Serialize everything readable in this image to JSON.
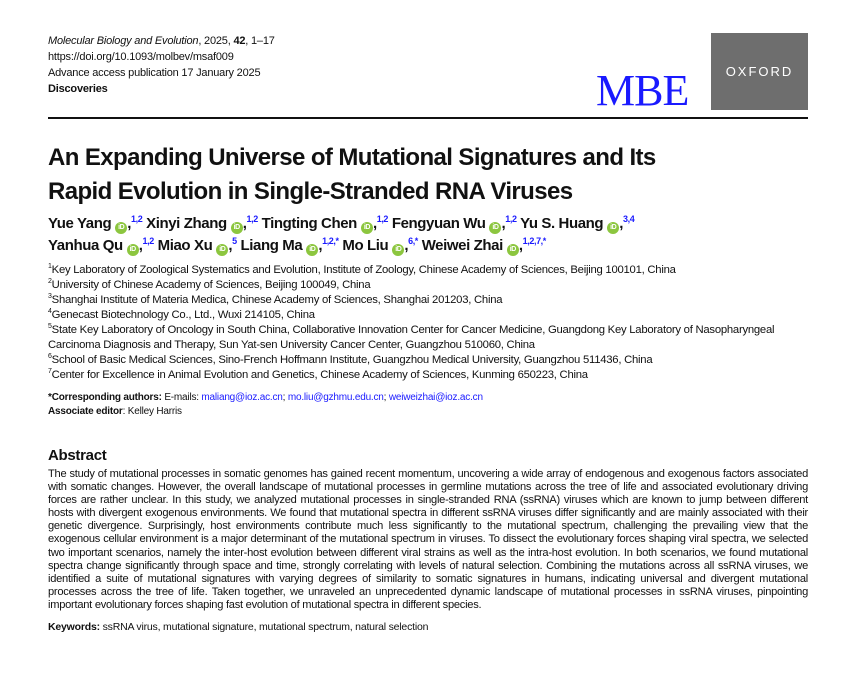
{
  "header": {
    "journal": "Molecular Biology and Evolution",
    "year_prefix": ", 2025, ",
    "volume": "42",
    "pages": ", 1–17",
    "doi": "https://doi.org/10.1093/molbev/msaf009",
    "advance": "Advance access publication 17 January 2025",
    "section": "Discoveries",
    "logo_mbe": "MBE",
    "logo_oxford": "OXFORD"
  },
  "title_lines": [
    "An Expanding Universe of Mutational Signatures and Its",
    "Rapid Evolution in Single-Stranded RNA Viruses"
  ],
  "authors": [
    [
      {
        "name": "Yue Yang",
        "sup": "1,2"
      },
      {
        "name": "Xinyi Zhang",
        "sup": "1,2"
      },
      {
        "name": "Tingting Chen",
        "sup": "1,2"
      },
      {
        "name": "Fengyuan Wu",
        "sup": "1,2"
      },
      {
        "name": "Yu S. Huang",
        "sup": "3,4"
      }
    ],
    [
      {
        "name": "Yanhua Qu",
        "sup": "1,2"
      },
      {
        "name": "Miao Xu",
        "sup": "5"
      },
      {
        "name": "Liang Ma",
        "sup": "1,2,*"
      },
      {
        "name": "Mo Liu",
        "sup": "6,*"
      },
      {
        "name": "Weiwei Zhai",
        "sup": "1,2,7,*"
      }
    ]
  ],
  "affiliations": [
    {
      "n": "1",
      "text": "Key Laboratory of Zoological Systematics and Evolution, Institute of Zoology, Chinese Academy of Sciences, Beijing 100101, China"
    },
    {
      "n": "2",
      "text": "University of Chinese Academy of Sciences, Beijing 100049, China"
    },
    {
      "n": "3",
      "text": "Shanghai Institute of Materia Medica, Chinese Academy of Sciences, Shanghai 201203, China"
    },
    {
      "n": "4",
      "text": "Genecast Biotechnology Co., Ltd., Wuxi 214105, China"
    },
    {
      "n": "5",
      "text": "State Key Laboratory of Oncology in South China, Collaborative Innovation Center for Cancer Medicine, Guangdong Key Laboratory of Nasopharyngeal Carcinoma Diagnosis and Therapy, Sun Yat-sen University Cancer Center, Guangzhou 510060, China"
    },
    {
      "n": "6",
      "text": "School of Basic Medical Sciences, Sino-French Hoffmann Institute, Guangzhou Medical University, Guangzhou 511436, China"
    },
    {
      "n": "7",
      "text": "Center for Excellence in Animal Evolution and Genetics, Chinese Academy of Sciences, Kunming 650223, China"
    }
  ],
  "corresponding": {
    "label": "*Corresponding authors:",
    "emails_label": " E-mails: ",
    "emails": [
      "maliang@ioz.ac.cn",
      "mo.liu@gzhmu.edu.cn",
      "weiweizhai@ioz.ac.cn"
    ]
  },
  "editor": {
    "label": "Associate editor",
    "name": ": Kelley Harris"
  },
  "abstract": {
    "heading": "Abstract",
    "text": "The study of mutational processes in somatic genomes has gained recent momentum, uncovering a wide array of endogenous and exogenous factors associated with somatic changes. However, the overall landscape of mutational processes in germline mutations across the tree of life and associated evolutionary driving forces are rather unclear. In this study, we analyzed mutational processes in single-stranded RNA (ssRNA) viruses which are known to jump between different hosts with divergent exogenous environments. We found that mutational spectra in different ssRNA viruses differ significantly and are mainly associated with their genetic divergence. Surprisingly, host environments contribute much less significantly to the mutational spectrum, challenging the prevailing view that the exogenous cellular environment is a major determinant of the mutational spectrum in viruses. To dissect the evolutionary forces shaping viral spectra, we selected two important scenarios, namely the inter-host evolution between different viral strains as well as the intra-host evolution. In both scenarios, we found mutational spectra change significantly through space and time, strongly correlating with levels of natural selection. Combining the mutations across all ssRNA viruses, we identified a suite of mutational signatures with varying degrees of similarity to somatic signatures in humans, indicating universal and divergent mutational processes across the tree of life. Taken together, we unraveled an unprecedented dynamic landscape of mutational processes in ssRNA viruses, pinpointing important evolutionary forces shaping fast evolution of mutational spectra in different species."
  },
  "keywords": {
    "label": "Keywords:",
    "text": " ssRNA virus, mutational signature, mutational spectrum, natural selection"
  },
  "colors": {
    "link": "#1a1aff",
    "orcid": "#8cc63f",
    "oxford_bg": "#6e6e6e"
  }
}
